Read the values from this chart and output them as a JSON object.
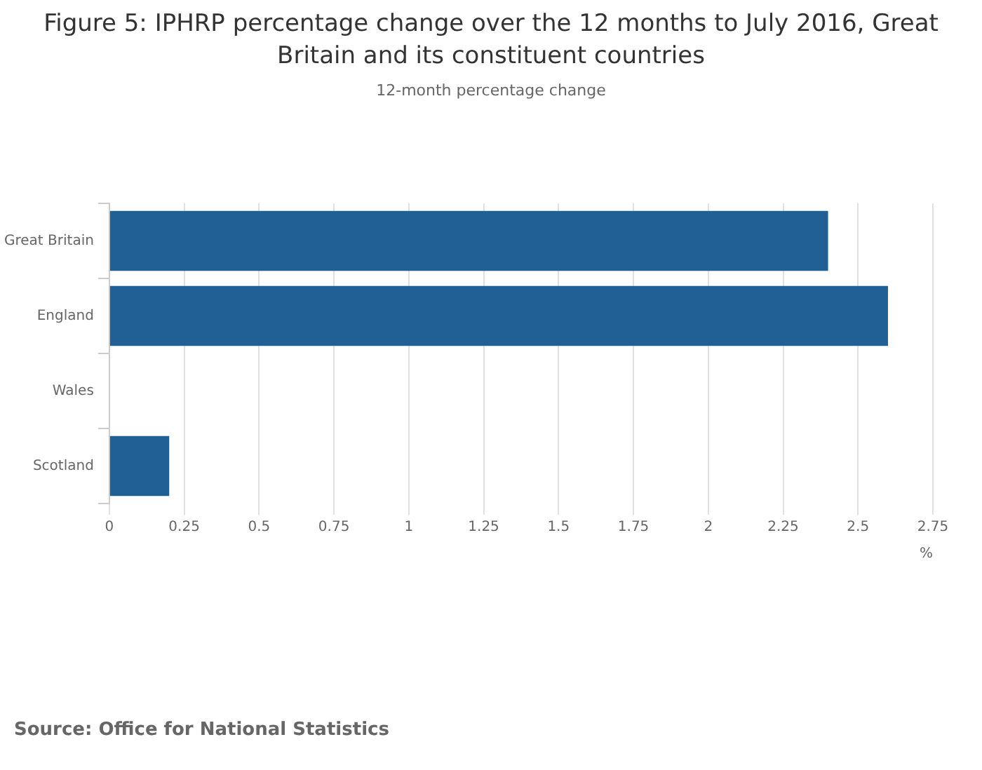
{
  "chart_data": {
    "type": "bar",
    "orientation": "horizontal",
    "title": "Figure 5: IPHRP percentage change over the 12 months to July 2016, Great Britain and its constituent countries",
    "subtitle": "12-month percentage change",
    "xlabel": "%",
    "categories": [
      "Great Britain",
      "England",
      "Wales",
      "Scotland"
    ],
    "series": [
      {
        "color": "#206095",
        "values": [
          2.4,
          2.6,
          0,
          0.2
        ]
      }
    ],
    "xlim": [
      0,
      2.75
    ],
    "xticks": [
      0,
      0.25,
      0.5,
      0.75,
      1,
      1.25,
      1.5,
      1.75,
      2,
      2.25,
      2.5,
      2.75
    ],
    "grid": "x",
    "legend": false,
    "annotations": [
      "Source: Office for National Statistics"
    ]
  }
}
